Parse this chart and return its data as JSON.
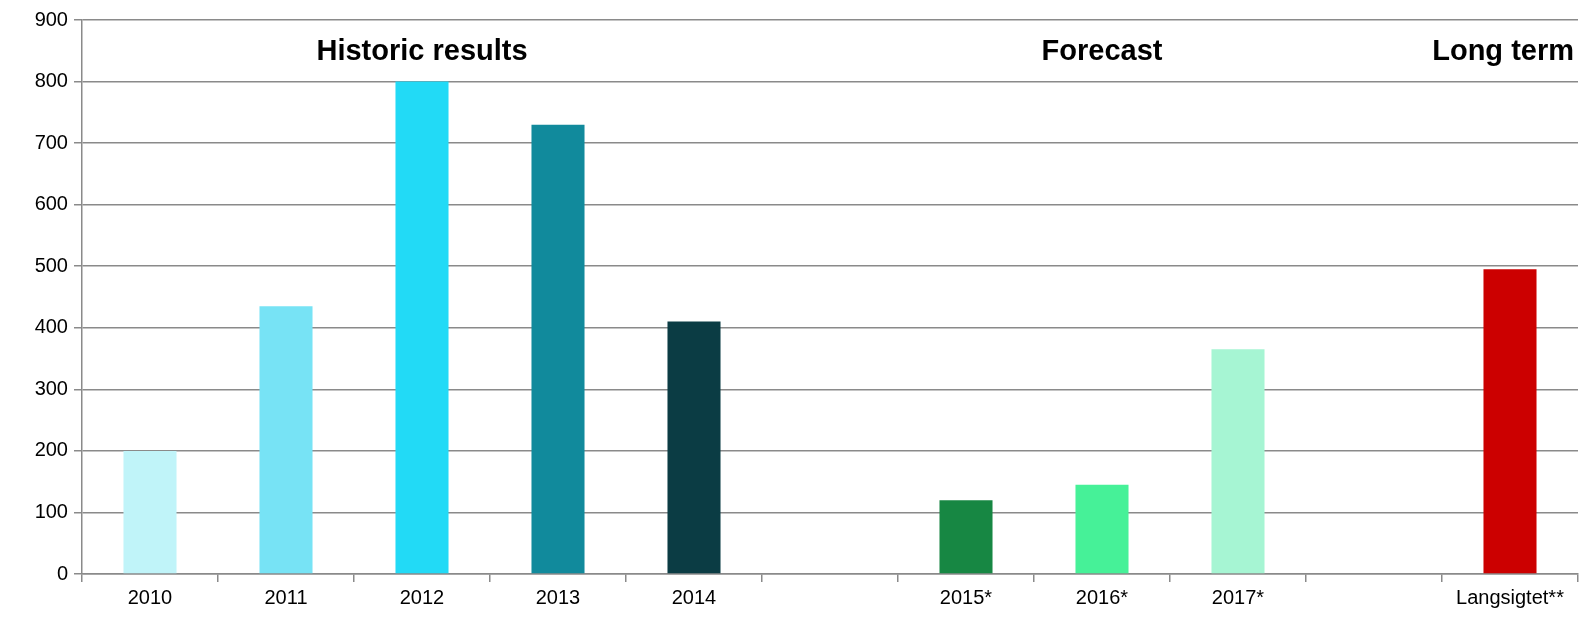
{
  "chart_data": {
    "type": "bar",
    "categories": [
      "2010",
      "2011",
      "2012",
      "2013",
      "2014",
      null,
      "2015*",
      "2016*",
      "2017*",
      null,
      "Langsigtet**"
    ],
    "values": [
      200,
      435,
      800,
      730,
      410,
      null,
      120,
      145,
      365,
      null,
      495
    ],
    "colors": [
      "#c0f4f9",
      "#77e3f5",
      "#22daf6",
      "#118a9c",
      "#0b3c44",
      "#ffffff",
      "#178743",
      "#46f198",
      "#a6f5d3",
      "#ffffff",
      "#cc0000"
    ],
    "ylim": [
      0,
      900
    ],
    "yticks": [
      0,
      100,
      200,
      300,
      400,
      500,
      600,
      700,
      800,
      900
    ],
    "grid": "y",
    "annotations": [
      "Historic results",
      "Forecast",
      "Long term"
    ]
  }
}
